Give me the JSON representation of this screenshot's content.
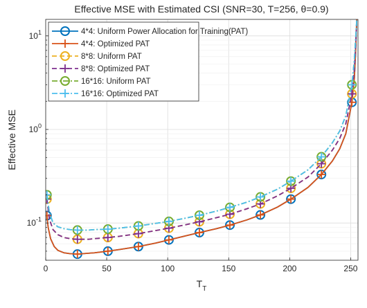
{
  "chart_data": {
    "type": "line",
    "title": "Effective MSE with Estimated CSI (SNR=30, T=256, θ=0.9)",
    "xlabel": "T",
    "xlabel_sub": "T",
    "ylabel": "Effective MSE",
    "xlim": [
      0,
      256
    ],
    "ylim": [
      0.04,
      15
    ],
    "yscale": "log",
    "grid": true,
    "legend_position": "top-left",
    "x_ticks": [
      0,
      50,
      100,
      150,
      200,
      250
    ],
    "y_ticks": [
      {
        "value": 0.1,
        "base": "10",
        "exp": "-1"
      },
      {
        "value": 1,
        "base": "10",
        "exp": "0"
      },
      {
        "value": 10,
        "base": "10",
        "exp": "1"
      }
    ],
    "series": [
      {
        "name": "4*4: Uniform Power Allocation for Training(PAT)",
        "color": "#0072bd",
        "dash": "solid",
        "marker": "circle",
        "x": [
          1,
          2,
          4,
          7,
          10,
          15,
          20,
          26,
          35,
          40,
          51,
          60,
          76,
          90,
          101,
          115,
          126,
          140,
          151,
          165,
          176,
          190,
          201,
          215,
          226,
          235,
          241,
          246,
          251,
          253,
          254,
          255
        ],
        "y": [
          0.12,
          0.09,
          0.068,
          0.056,
          0.051,
          0.048,
          0.047,
          0.0465,
          0.0475,
          0.048,
          0.05,
          0.052,
          0.056,
          0.061,
          0.066,
          0.073,
          0.079,
          0.087,
          0.095,
          0.108,
          0.122,
          0.148,
          0.18,
          0.24,
          0.33,
          0.46,
          0.62,
          0.9,
          1.95,
          3.5,
          6.5,
          15
        ]
      },
      {
        "name": "4*4: Optimized PAT",
        "color": "#d95319",
        "dash": "solid",
        "marker": "plus",
        "x": [
          1,
          2,
          4,
          7,
          10,
          15,
          20,
          26,
          35,
          40,
          51,
          60,
          76,
          90,
          101,
          115,
          126,
          140,
          151,
          165,
          176,
          190,
          201,
          215,
          226,
          235,
          241,
          246,
          251,
          253,
          254,
          255
        ],
        "y": [
          0.12,
          0.09,
          0.068,
          0.056,
          0.051,
          0.048,
          0.047,
          0.0465,
          0.0475,
          0.048,
          0.05,
          0.052,
          0.056,
          0.061,
          0.066,
          0.073,
          0.079,
          0.087,
          0.095,
          0.108,
          0.122,
          0.148,
          0.18,
          0.24,
          0.33,
          0.46,
          0.62,
          0.9,
          1.95,
          3.5,
          6.5,
          15
        ]
      },
      {
        "name": "8*8: Uniform PAT",
        "color": "#edb120",
        "dash": "dashed",
        "marker": "circle",
        "x": [
          1,
          3,
          6,
          10,
          15,
          20,
          26,
          35,
          40,
          51,
          60,
          76,
          90,
          101,
          115,
          126,
          140,
          151,
          165,
          176,
          190,
          201,
          215,
          226,
          235,
          241,
          246,
          251,
          253,
          254,
          255
        ],
        "y": [
          0.18,
          0.11,
          0.085,
          0.075,
          0.07,
          0.068,
          0.067,
          0.067,
          0.068,
          0.07,
          0.072,
          0.077,
          0.083,
          0.088,
          0.096,
          0.103,
          0.114,
          0.124,
          0.142,
          0.16,
          0.195,
          0.235,
          0.31,
          0.43,
          0.6,
          0.8,
          1.15,
          2.4,
          4.3,
          7.5,
          15
        ]
      },
      {
        "name": "8*8: Optimized PAT",
        "color": "#7e2f8e",
        "dash": "dashed",
        "marker": "plus",
        "x": [
          1,
          3,
          6,
          10,
          15,
          20,
          26,
          35,
          40,
          51,
          60,
          76,
          90,
          101,
          115,
          126,
          140,
          151,
          165,
          176,
          190,
          201,
          215,
          226,
          235,
          241,
          246,
          251,
          253,
          254,
          255
        ],
        "y": [
          0.18,
          0.11,
          0.085,
          0.075,
          0.07,
          0.068,
          0.067,
          0.067,
          0.068,
          0.07,
          0.072,
          0.077,
          0.083,
          0.088,
          0.096,
          0.103,
          0.114,
          0.124,
          0.142,
          0.16,
          0.195,
          0.235,
          0.31,
          0.43,
          0.6,
          0.8,
          1.15,
          2.4,
          4.3,
          7.5,
          15
        ]
      },
      {
        "name": "16*16: Uniform PAT",
        "color": "#77ac30",
        "dash": "dashdot",
        "marker": "circle",
        "x": [
          1,
          3,
          6,
          10,
          15,
          20,
          26,
          35,
          40,
          51,
          60,
          76,
          90,
          101,
          115,
          126,
          140,
          151,
          165,
          176,
          190,
          201,
          215,
          226,
          235,
          241,
          246,
          251,
          253,
          254,
          255
        ],
        "y": [
          0.2,
          0.13,
          0.1,
          0.091,
          0.087,
          0.085,
          0.084,
          0.084,
          0.085,
          0.086,
          0.088,
          0.093,
          0.099,
          0.104,
          0.113,
          0.121,
          0.134,
          0.147,
          0.167,
          0.19,
          0.23,
          0.28,
          0.37,
          0.51,
          0.72,
          0.96,
          1.4,
          3.0,
          5.5,
          9,
          15
        ]
      },
      {
        "name": "16*16: Optimized PAT",
        "color": "#4dbeee",
        "dash": "dashdot",
        "marker": "plus",
        "x": [
          1,
          3,
          6,
          10,
          15,
          20,
          26,
          35,
          40,
          51,
          60,
          76,
          90,
          101,
          115,
          126,
          140,
          151,
          165,
          176,
          190,
          201,
          215,
          226,
          235,
          241,
          246,
          251,
          253,
          254,
          255
        ],
        "y": [
          0.2,
          0.13,
          0.1,
          0.091,
          0.087,
          0.085,
          0.084,
          0.084,
          0.085,
          0.086,
          0.088,
          0.093,
          0.099,
          0.104,
          0.113,
          0.121,
          0.134,
          0.147,
          0.167,
          0.19,
          0.23,
          0.28,
          0.37,
          0.51,
          0.72,
          0.96,
          1.4,
          3.0,
          5.5,
          9,
          15
        ]
      }
    ],
    "marker_x": {
      "4*4": [
        1,
        26,
        51,
        76,
        101,
        126,
        151,
        176,
        201,
        226,
        251
      ],
      "8*8": [
        1,
        26,
        51,
        76,
        101,
        126,
        151,
        176,
        201,
        226,
        251
      ],
      "16*16": [
        1,
        26,
        51,
        76,
        101,
        126,
        151,
        176,
        201,
        226,
        251
      ]
    }
  }
}
